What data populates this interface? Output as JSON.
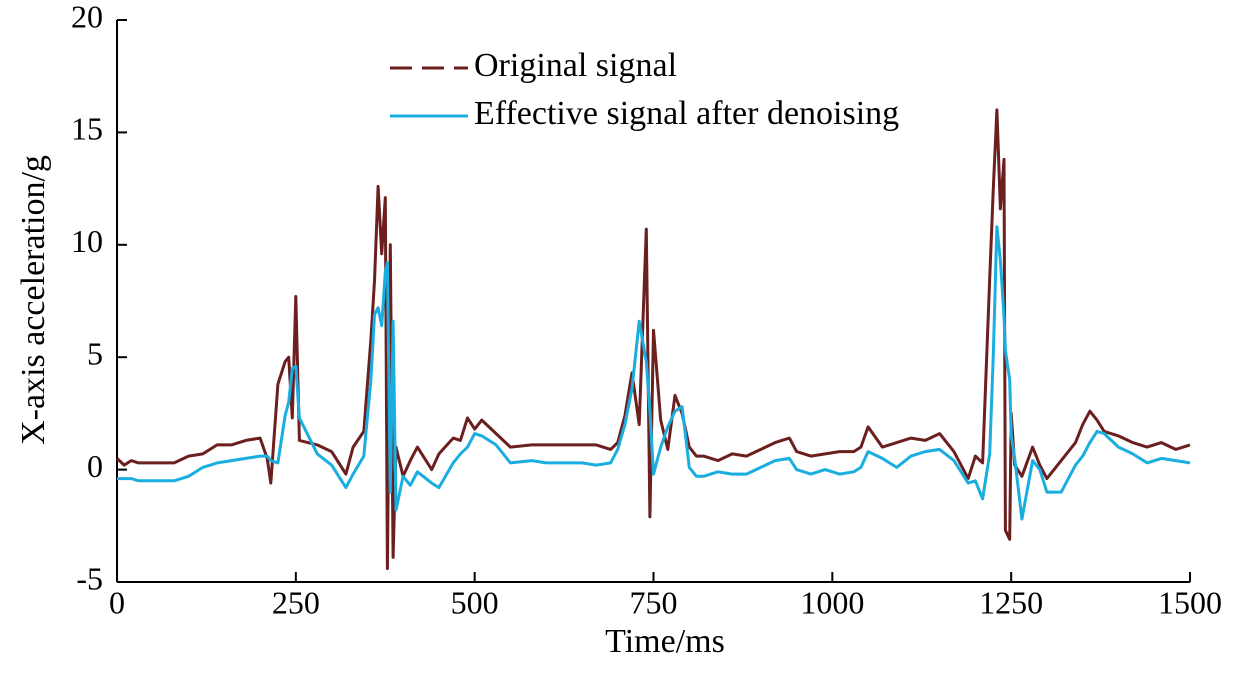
{
  "chart_data": {
    "type": "line",
    "xlabel": "Time/ms",
    "ylabel": "X-axis acceleration/g",
    "x": [
      0,
      10,
      20,
      30,
      50,
      80,
      100,
      120,
      140,
      160,
      180,
      200,
      210,
      215,
      225,
      235,
      240,
      245,
      250,
      255,
      280,
      300,
      320,
      330,
      345,
      355,
      360,
      365,
      370,
      375,
      378,
      382,
      386,
      390,
      400,
      410,
      420,
      440,
      450,
      470,
      480,
      490,
      500,
      510,
      530,
      550,
      580,
      600,
      620,
      650,
      670,
      690,
      700,
      710,
      720,
      730,
      740,
      745,
      750,
      760,
      770,
      780,
      790,
      800,
      810,
      820,
      840,
      860,
      880,
      900,
      920,
      940,
      950,
      970,
      990,
      1010,
      1030,
      1040,
      1050,
      1070,
      1090,
      1110,
      1130,
      1150,
      1170,
      1190,
      1200,
      1210,
      1220,
      1225,
      1230,
      1235,
      1240,
      1242,
      1248,
      1250,
      1255,
      1265,
      1280,
      1290,
      1300,
      1320,
      1340,
      1350,
      1360,
      1370,
      1380,
      1400,
      1420,
      1440,
      1460,
      1480,
      1500
    ],
    "series": [
      {
        "name": "Original signal",
        "color": "#6b1f1f",
        "dash": true,
        "values": [
          0.5,
          0.2,
          0.4,
          0.3,
          0.3,
          0.3,
          0.6,
          0.7,
          1.1,
          1.1,
          1.3,
          1.4,
          0.5,
          -0.6,
          3.8,
          4.8,
          5.0,
          2.3,
          7.7,
          1.3,
          1.1,
          0.8,
          -0.2,
          1.0,
          1.7,
          5.8,
          8.4,
          12.6,
          9.6,
          12.1,
          -4.4,
          10.0,
          -3.9,
          1.0,
          -0.3,
          0.4,
          1.0,
          0.0,
          0.7,
          1.4,
          1.3,
          2.3,
          1.8,
          2.2,
          1.6,
          1.0,
          1.1,
          1.1,
          1.1,
          1.1,
          1.1,
          0.9,
          1.2,
          2.4,
          4.3,
          2.0,
          10.7,
          -2.1,
          6.2,
          2.2,
          0.9,
          3.3,
          2.5,
          1.0,
          0.6,
          0.6,
          0.4,
          0.7,
          0.6,
          0.9,
          1.2,
          1.4,
          0.8,
          0.6,
          0.7,
          0.8,
          0.8,
          1.0,
          1.9,
          1.0,
          1.2,
          1.4,
          1.3,
          1.6,
          0.8,
          -0.4,
          0.6,
          0.3,
          8.5,
          12.5,
          16.0,
          11.6,
          13.8,
          -2.7,
          -3.1,
          2.5,
          0.2,
          -0.3,
          1.0,
          0.2,
          -0.4,
          0.4,
          1.2,
          2.0,
          2.6,
          2.2,
          1.7,
          1.5,
          1.2,
          1.0,
          1.2,
          0.9,
          1.1
        ]
      },
      {
        "name": "Effective signal after denoising",
        "color": "#1aaee0",
        "dash": false,
        "values": [
          -0.4,
          -0.4,
          -0.4,
          -0.5,
          -0.5,
          -0.5,
          -0.3,
          0.1,
          0.3,
          0.4,
          0.5,
          0.6,
          0.6,
          0.4,
          0.3,
          2.4,
          3.0,
          4.5,
          4.6,
          2.3,
          0.7,
          0.2,
          -0.8,
          -0.2,
          0.6,
          4.0,
          6.9,
          7.2,
          6.4,
          8.8,
          9.2,
          -1.0,
          6.6,
          -1.8,
          -0.3,
          -0.7,
          -0.1,
          -0.6,
          -0.8,
          0.3,
          0.7,
          1.0,
          1.6,
          1.5,
          1.1,
          0.3,
          0.4,
          0.3,
          0.3,
          0.3,
          0.2,
          0.3,
          0.9,
          2.0,
          3.6,
          6.6,
          4.8,
          2.6,
          -0.2,
          1.0,
          1.9,
          2.6,
          2.8,
          0.1,
          -0.3,
          -0.3,
          -0.1,
          -0.2,
          -0.2,
          0.1,
          0.4,
          0.5,
          0.0,
          -0.2,
          0.0,
          -0.2,
          -0.1,
          0.1,
          0.8,
          0.5,
          0.1,
          0.6,
          0.8,
          0.9,
          0.4,
          -0.6,
          -0.5,
          -1.3,
          0.7,
          5.1,
          10.8,
          9.3,
          6.8,
          5.3,
          4.0,
          1.5,
          0.5,
          -2.2,
          0.4,
          0.0,
          -1.0,
          -1.0,
          0.2,
          0.6,
          1.2,
          1.7,
          1.6,
          1.0,
          0.7,
          0.3,
          0.5,
          0.4,
          0.3
        ]
      }
    ],
    "xlim": [
      0,
      1500
    ],
    "xticks": [
      0,
      250,
      500,
      750,
      1000,
      1250,
      1500
    ],
    "ylim": [
      -5,
      20
    ],
    "yticks": [
      -5,
      0,
      5,
      10,
      15,
      20
    ],
    "legend": "upper-center"
  }
}
